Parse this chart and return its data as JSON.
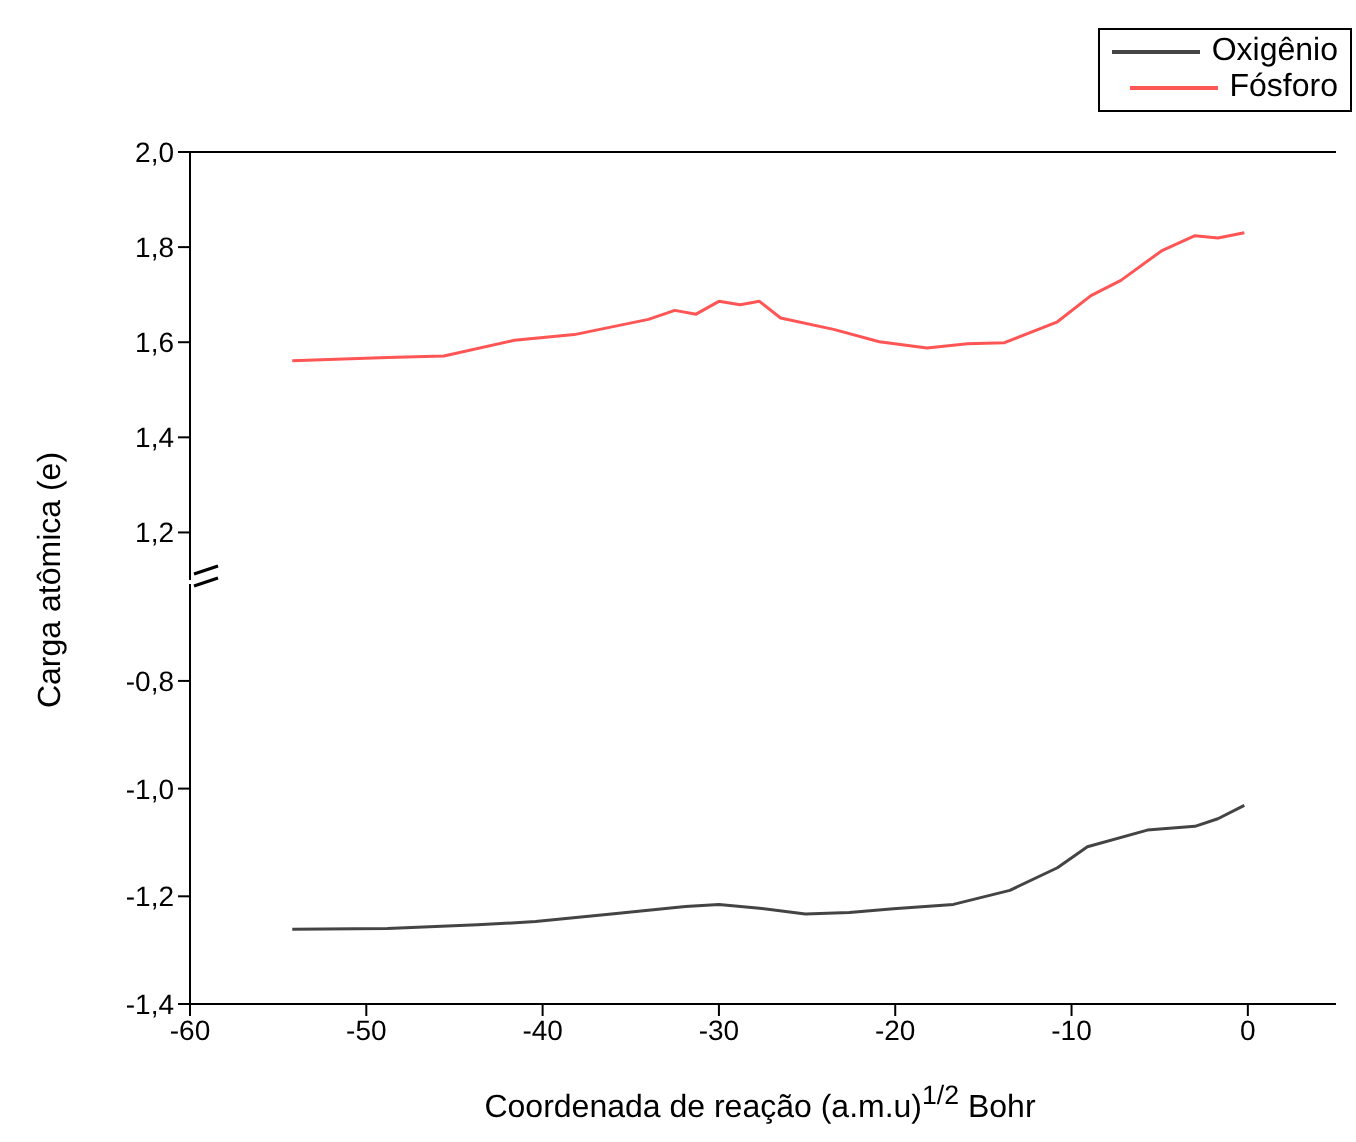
{
  "chart_data": [
    {
      "type": "line",
      "ylabel": "Carga atômica (e)",
      "xlim": [
        -60,
        5
      ],
      "ylim": [
        1.1,
        2.0
      ],
      "yticks": [
        {
          "value": 1.2,
          "label": "1,2"
        },
        {
          "value": 1.4,
          "label": "1,4"
        },
        {
          "value": 1.6,
          "label": "1,6"
        },
        {
          "value": 1.8,
          "label": "1,8"
        },
        {
          "value": 2.0,
          "label": "2,0"
        }
      ],
      "tick_labels": "y",
      "legend": "top right",
      "grid": false,
      "marker": "none",
      "line_style": "solid",
      "x": [
        -54.2,
        -48.8,
        -45.6,
        -41.6,
        -38.2,
        -34.0,
        -32.5,
        -31.3,
        -30.0,
        -28.8,
        -27.7,
        -26.5,
        -23.5,
        -20.9,
        -18.2,
        -15.9,
        -13.8,
        -10.8,
        -8.9,
        -7.2,
        -4.9,
        -3.0,
        -1.7,
        -0.2
      ],
      "series": [
        {
          "name": "Fósforo",
          "color": "#ff5555",
          "values": [
            1.561,
            1.568,
            1.571,
            1.604,
            1.616,
            1.648,
            1.667,
            1.659,
            1.686,
            1.679,
            1.686,
            1.651,
            1.627,
            1.601,
            1.588,
            1.597,
            1.599,
            1.643,
            1.698,
            1.73,
            1.792,
            1.824,
            1.819,
            1.83
          ]
        }
      ]
    },
    {
      "type": "line",
      "xlabel": "Coordenada de reação (a.m.u)$^{1/2}$ Bohr",
      "xlim": [
        -60,
        5
      ],
      "xticks": [
        -60,
        -50,
        -40,
        -30,
        -20,
        -10,
        0
      ],
      "ylim": [
        -1.4,
        -0.62
      ],
      "yticks": [
        {
          "value": -1.4,
          "label": "-1,4"
        },
        {
          "value": -1.2,
          "label": "-1,2"
        },
        {
          "value": -1.0,
          "label": "-1,0"
        },
        {
          "value": -0.8,
          "label": "-0,8"
        }
      ],
      "grid": false,
      "marker": "none",
      "line_style": "solid",
      "x": [
        -54.2,
        -48.8,
        -43.7,
        -40.4,
        -36.1,
        -31.9,
        -30.0,
        -27.7,
        -25.1,
        -22.6,
        -20.1,
        -16.7,
        -13.5,
        -10.8,
        -9.1,
        -5.7,
        -3.0,
        -1.7,
        -0.2
      ],
      "series": [
        {
          "name": "Oxigênio",
          "color": "#444444",
          "values": [
            -1.261,
            -1.26,
            -1.253,
            -1.247,
            -1.233,
            -1.219,
            -1.215,
            -1.222,
            -1.233,
            -1.23,
            -1.223,
            -1.215,
            -1.189,
            -1.147,
            -1.108,
            -1.077,
            -1.07,
            -1.056,
            -1.031
          ]
        }
      ]
    }
  ]
}
